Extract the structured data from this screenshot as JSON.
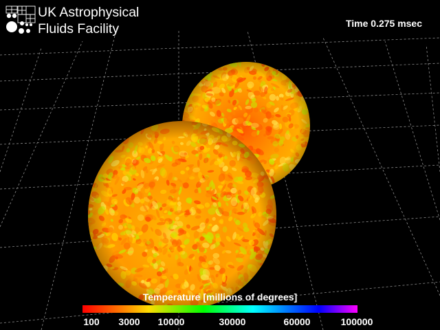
{
  "logo": {
    "line1": "UK Astrophysical",
    "line2": "Fluids Facility",
    "icon": "circles-grid-logo"
  },
  "time_label": "Time 0.275 msec",
  "colorbar": {
    "title": "Temperature [millions of degrees]",
    "ticks": [
      "100",
      "3000",
      "10000",
      "30000",
      "60000",
      "100000"
    ],
    "colors": [
      "#ff0000",
      "#ff7a00",
      "#ffdd00",
      "#00ff00",
      "#00ffff",
      "#0066ff",
      "#0000ff",
      "#ff00ff"
    ]
  },
  "scene": {
    "background": "#000000",
    "grid_color": "#ffffff",
    "stars": [
      {
        "name": "far-star",
        "core_color": "#ff6600",
        "surface_color": "#ffaa00"
      },
      {
        "name": "near-star",
        "core_color": "#ffcc33",
        "surface_color": "#ffaa00"
      }
    ]
  }
}
